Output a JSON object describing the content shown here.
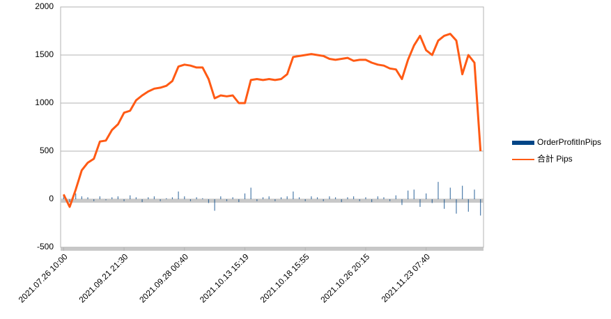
{
  "chart_data": {
    "type": "combo",
    "categories": [
      "2021.07.26 10:00",
      null,
      null,
      null,
      null,
      null,
      null,
      null,
      null,
      null,
      "2021.09.21 21:30",
      null,
      null,
      null,
      null,
      null,
      null,
      null,
      null,
      null,
      "2021.09.28 00:40",
      null,
      null,
      null,
      null,
      null,
      null,
      null,
      null,
      null,
      "2021.10.13 15:19",
      null,
      null,
      null,
      null,
      null,
      null,
      null,
      null,
      null,
      "2021.10.18 15:55",
      null,
      null,
      null,
      null,
      null,
      null,
      null,
      null,
      null,
      "2021.10.26 20:15",
      null,
      null,
      null,
      null,
      null,
      null,
      null,
      null,
      null,
      "2021.11.23 07:40",
      null,
      null,
      null,
      null,
      null,
      null,
      null,
      null,
      null
    ],
    "series": [
      {
        "name": "OrderProfitInPips",
        "type": "bar",
        "color": "#004586",
        "values": [
          40,
          -30,
          60,
          30,
          20,
          -20,
          30,
          -10,
          20,
          30,
          -20,
          40,
          20,
          -30,
          20,
          30,
          -20,
          10,
          20,
          80,
          30,
          -20,
          20,
          10,
          -40,
          -120,
          30,
          -20,
          20,
          -30,
          60,
          120,
          -20,
          20,
          30,
          -20,
          20,
          30,
          80,
          20,
          -20,
          30,
          20,
          -20,
          30,
          20,
          -30,
          20,
          30,
          -20,
          20,
          -30,
          30,
          20,
          -20,
          40,
          -60,
          90,
          100,
          -80,
          60,
          -40,
          180,
          -100,
          120,
          -150,
          140,
          -130,
          100,
          -170
        ]
      },
      {
        "name": "合計 Pips",
        "type": "line",
        "color": "#ff5a14",
        "values": [
          50,
          -80,
          100,
          300,
          380,
          420,
          600,
          610,
          720,
          780,
          900,
          920,
          1030,
          1080,
          1120,
          1150,
          1160,
          1180,
          1230,
          1380,
          1400,
          1390,
          1370,
          1370,
          1250,
          1050,
          1080,
          1070,
          1080,
          1000,
          1000,
          1240,
          1250,
          1240,
          1250,
          1240,
          1250,
          1300,
          1480,
          1490,
          1500,
          1510,
          1500,
          1490,
          1460,
          1450,
          1460,
          1470,
          1440,
          1450,
          1450,
          1420,
          1400,
          1390,
          1360,
          1350,
          1250,
          1450,
          1600,
          1700,
          1550,
          1500,
          1650,
          1700,
          1720,
          1650,
          1300,
          1500,
          1420,
          500
        ]
      }
    ],
    "ylim": [
      -500,
      2000
    ],
    "yticks": [
      -500,
      0,
      500,
      1000,
      1500,
      2000
    ],
    "grid": true
  }
}
